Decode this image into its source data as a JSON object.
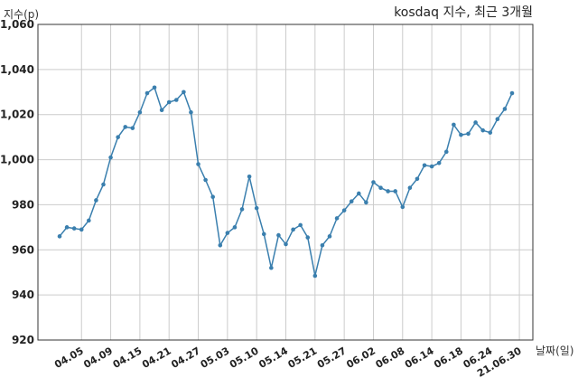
{
  "chart_data": {
    "type": "line",
    "title": "kosdaq 지수, 최근 3개월",
    "ylabel": "지수(p)",
    "xlabel": "날짜(일)",
    "ylim": [
      920,
      1060
    ],
    "yticks": [
      920,
      940,
      960,
      980,
      1000,
      1020,
      1040,
      1060
    ],
    "ytick_labels": [
      "920",
      "940",
      "960",
      "980",
      "1,000",
      "1,020",
      "1,040",
      "1,060"
    ],
    "xtick_labels": [
      "04.05",
      "04.09",
      "04.15",
      "04.21",
      "04.27",
      "05.03",
      "05.10",
      "05.14",
      "05.21",
      "05.27",
      "06.02",
      "06.08",
      "06.14",
      "06.18",
      "06.24",
      "21.06.30"
    ],
    "xtick_index": [
      3,
      7,
      11,
      15,
      19,
      23,
      27,
      31,
      35,
      39,
      43,
      47,
      51,
      55,
      59,
      63
    ],
    "grid": true,
    "color": "#3a7fae",
    "series": [
      {
        "values": [
          966,
          970,
          969.5,
          969,
          973,
          982,
          989,
          1001,
          1010,
          1014.5,
          1014,
          1021,
          1029.5,
          1032,
          1022,
          1025.5,
          1026.5,
          1030,
          1021,
          998,
          991,
          983.5,
          962,
          967.5,
          970,
          978,
          992.5,
          978.5,
          967,
          952,
          966.5,
          962.5,
          969,
          971,
          965.5,
          948.5,
          962,
          966,
          974,
          977.5,
          981.5,
          985,
          981,
          990,
          987.5,
          986,
          986,
          979,
          987.5,
          991.5,
          997.5,
          997,
          998.5,
          1003.5,
          1015.5,
          1011,
          1011.5,
          1016.5,
          1013,
          1012,
          1018,
          1022.5,
          1029.5
        ]
      }
    ]
  }
}
